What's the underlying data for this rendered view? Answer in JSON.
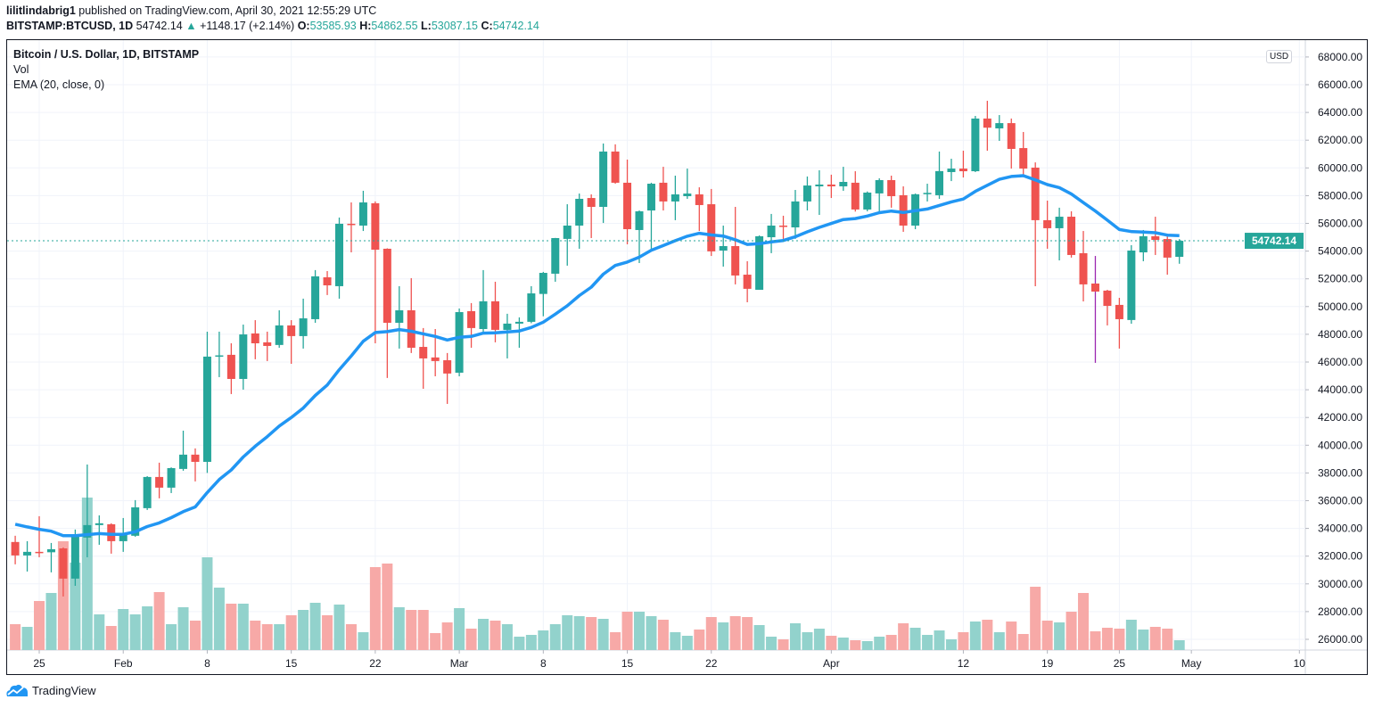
{
  "header": {
    "author": "lilitlindabrig1",
    "published": "published on TradingView.com, April 30, 2021 12:55:29 UTC",
    "symbol": "BITSTAMP:BTCUSD, 1D",
    "last": "54742.14",
    "change": "+1148.17 (+2.14%)",
    "o_label": "O:",
    "o": "53585.93",
    "h_label": "H:",
    "h": "54862.55",
    "l_label": "L:",
    "l": "53087.15",
    "c_label": "C:",
    "c": "54742.14"
  },
  "legend": {
    "title": "Bitcoin / U.S. Dollar, 1D, BITSTAMP",
    "vol": "Vol",
    "ema": "EMA (20, close, 0)"
  },
  "currency_badge": "USD",
  "footer": {
    "brand": "TradingView"
  },
  "colors": {
    "up": "#26a69a",
    "down": "#ef5350",
    "ema": "#2196f3",
    "vol_up": "#92d2cc",
    "vol_down": "#f7a9a7",
    "grid": "#f0f3fa"
  },
  "chart_data": {
    "type": "candlestick",
    "title": "Bitcoin / U.S. Dollar, 1D, BITSTAMP",
    "ylim": [
      25000,
      68500
    ],
    "y_ticks": [
      "68000.00",
      "66000.00",
      "64000.00",
      "62000.00",
      "60000.00",
      "58000.00",
      "56000.00",
      "54000.00",
      "52000.00",
      "50000.00",
      "48000.00",
      "46000.00",
      "44000.00",
      "42000.00",
      "40000.00",
      "38000.00",
      "36000.00",
      "34000.00",
      "32000.00",
      "30000.00",
      "28000.00",
      "26000.00"
    ],
    "x_ticks": [
      {
        "label": "25",
        "date": "2021-01-25"
      },
      {
        "label": "Feb",
        "date": "2021-02-01"
      },
      {
        "label": "8",
        "date": "2021-02-08"
      },
      {
        "label": "15",
        "date": "2021-02-15"
      },
      {
        "label": "22",
        "date": "2021-02-22"
      },
      {
        "label": "Mar",
        "date": "2021-03-01"
      },
      {
        "label": "8",
        "date": "2021-03-08"
      },
      {
        "label": "15",
        "date": "2021-03-15"
      },
      {
        "label": "22",
        "date": "2021-03-22"
      },
      {
        "label": "Apr",
        "date": "2021-04-01"
      },
      {
        "label": "12",
        "date": "2021-04-12"
      },
      {
        "label": "19",
        "date": "2021-04-19"
      },
      {
        "label": "25",
        "date": "2021-04-25"
      },
      {
        "label": "May",
        "date": "2021-05-01"
      },
      {
        "label": "10",
        "date": "2021-05-10"
      }
    ],
    "last_price_label": "54742.14",
    "indicator": "EMA (20, close, 0)",
    "volume_scale": "relative",
    "highlight_wick": {
      "date": "2021-04-23",
      "color": "#9c27b0"
    },
    "candles_fields": [
      "date",
      "open",
      "high",
      "low",
      "close",
      "relative_volume"
    ],
    "candles": [
      [
        "2021-01-23",
        33020,
        33470,
        31410,
        32050,
        29
      ],
      [
        "2021-01-24",
        32050,
        33080,
        30890,
        32310,
        26
      ],
      [
        "2021-01-25",
        32310,
        34880,
        31920,
        32280,
        55
      ],
      [
        "2021-01-26",
        32280,
        32950,
        30830,
        32500,
        64
      ],
      [
        "2021-01-27",
        32560,
        32630,
        29090,
        30380,
        122
      ],
      [
        "2021-01-28",
        30380,
        33920,
        29860,
        33530,
        98
      ],
      [
        "2021-01-29",
        33340,
        38610,
        31920,
        34240,
        171
      ],
      [
        "2021-01-30",
        34240,
        34940,
        32820,
        34370,
        40
      ],
      [
        "2021-01-31",
        34300,
        34370,
        32180,
        33080,
        27
      ],
      [
        "2021-02-01",
        33080,
        34750,
        32310,
        33530,
        46
      ],
      [
        "2021-02-02",
        33470,
        36040,
        33400,
        35520,
        40
      ],
      [
        "2021-02-03",
        35460,
        37770,
        35330,
        37710,
        49
      ],
      [
        "2021-02-04",
        37710,
        38740,
        36170,
        36940,
        65
      ],
      [
        "2021-02-05",
        36940,
        38400,
        36550,
        38350,
        29
      ],
      [
        "2021-02-06",
        38290,
        41050,
        38160,
        39320,
        48
      ],
      [
        "2021-02-07",
        39320,
        39770,
        37390,
        38800,
        33
      ],
      [
        "2021-02-08",
        38800,
        48190,
        38000,
        46390,
        104
      ],
      [
        "2021-02-09",
        46420,
        48190,
        44910,
        46480,
        70
      ],
      [
        "2021-02-10",
        46520,
        47350,
        43690,
        44780,
        52
      ],
      [
        "2021-02-11",
        44780,
        48700,
        44010,
        47990,
        52
      ],
      [
        "2021-02-12",
        48060,
        49020,
        46200,
        47350,
        33
      ],
      [
        "2021-02-13",
        47420,
        48190,
        46070,
        47160,
        29
      ],
      [
        "2021-02-14",
        47230,
        49730,
        47030,
        48640,
        29
      ],
      [
        "2021-02-15",
        48640,
        49020,
        45870,
        47870,
        39
      ],
      [
        "2021-02-16",
        47870,
        50570,
        46970,
        49150,
        45
      ],
      [
        "2021-02-17",
        49090,
        52630,
        48830,
        52180,
        53
      ],
      [
        "2021-02-18",
        52110,
        52560,
        50830,
        51530,
        39
      ],
      [
        "2021-02-19",
        51470,
        56420,
        50570,
        55970,
        51
      ],
      [
        "2021-02-20",
        55970,
        57510,
        53910,
        55900,
        29
      ],
      [
        "2021-02-21",
        55840,
        58350,
        55450,
        57510,
        20
      ],
      [
        "2021-02-22",
        57450,
        57580,
        47350,
        54100,
        93
      ],
      [
        "2021-02-23",
        54170,
        54200,
        44850,
        48830,
        97
      ],
      [
        "2021-02-24",
        48830,
        51470,
        46970,
        49730,
        48
      ],
      [
        "2021-02-25",
        49730,
        52050,
        46650,
        47030,
        45
      ],
      [
        "2021-02-26",
        47090,
        48450,
        44070,
        46260,
        45
      ],
      [
        "2021-02-27",
        46330,
        48380,
        44970,
        46070,
        19
      ],
      [
        "2021-02-28",
        46130,
        46650,
        42980,
        45170,
        31
      ],
      [
        "2021-03-01",
        45230,
        49860,
        44970,
        49600,
        47
      ],
      [
        "2021-03-02",
        49670,
        50250,
        47030,
        48450,
        24
      ],
      [
        "2021-03-03",
        48380,
        52630,
        48130,
        50380,
        35
      ],
      [
        "2021-03-04",
        50380,
        51790,
        47420,
        48320,
        33
      ],
      [
        "2021-03-05",
        48320,
        49480,
        46260,
        48770,
        29
      ],
      [
        "2021-03-06",
        48770,
        49220,
        47030,
        48900,
        15
      ],
      [
        "2021-03-07",
        48900,
        51470,
        48800,
        50950,
        17
      ],
      [
        "2021-03-08",
        50910,
        52500,
        49300,
        52430,
        22
      ],
      [
        "2021-03-09",
        52370,
        54950,
        51790,
        54940,
        29
      ],
      [
        "2021-03-10",
        54880,
        57380,
        52950,
        55840,
        39
      ],
      [
        "2021-03-11",
        55840,
        58150,
        54170,
        57770,
        38
      ],
      [
        "2021-03-12",
        57830,
        58090,
        54940,
        57190,
        37
      ],
      [
        "2021-03-13",
        57190,
        61760,
        56030,
        61180,
        35
      ],
      [
        "2021-03-14",
        61180,
        61700,
        58860,
        58930,
        20
      ],
      [
        "2021-03-15",
        58930,
        60600,
        54490,
        55580,
        43
      ],
      [
        "2021-03-16",
        55520,
        56930,
        53140,
        56870,
        43
      ],
      [
        "2021-03-17",
        56930,
        58930,
        54170,
        58860,
        38
      ],
      [
        "2021-03-18",
        58930,
        60080,
        56930,
        57580,
        34
      ],
      [
        "2021-03-19",
        57580,
        59440,
        56230,
        58090,
        20
      ],
      [
        "2021-03-20",
        57960,
        59950,
        57770,
        58150,
        16
      ],
      [
        "2021-03-21",
        58090,
        58600,
        55450,
        57320,
        23
      ],
      [
        "2021-03-22",
        57380,
        58480,
        53650,
        53980,
        37
      ],
      [
        "2021-03-23",
        54040,
        55840,
        52880,
        54360,
        31
      ],
      [
        "2021-03-24",
        54360,
        57190,
        51600,
        52240,
        38
      ],
      [
        "2021-03-25",
        52300,
        53270,
        50310,
        51280,
        37
      ],
      [
        "2021-03-26",
        51210,
        55130,
        51210,
        55070,
        28
      ],
      [
        "2021-03-27",
        55000,
        56680,
        53850,
        55840,
        15
      ],
      [
        "2021-03-28",
        55840,
        56550,
        54680,
        55780,
        12
      ],
      [
        "2021-03-29",
        55710,
        58410,
        54880,
        57580,
        30
      ],
      [
        "2021-03-30",
        57580,
        59380,
        56930,
        58730,
        20
      ],
      [
        "2021-03-31",
        58670,
        59830,
        56610,
        58800,
        24
      ],
      [
        "2021-04-01",
        58800,
        59510,
        57830,
        58670,
        16
      ],
      [
        "2021-04-02",
        58670,
        60080,
        58350,
        58990,
        14
      ],
      [
        "2021-04-03",
        58930,
        59760,
        56850,
        57000,
        11
      ],
      [
        "2021-04-04",
        57000,
        58300,
        56870,
        58220,
        10
      ],
      [
        "2021-04-05",
        58160,
        59250,
        56870,
        59120,
        15
      ],
      [
        "2021-04-06",
        59120,
        59440,
        57130,
        57960,
        17
      ],
      [
        "2021-04-07",
        58030,
        58670,
        55390,
        55840,
        30
      ],
      [
        "2021-04-08",
        55840,
        58150,
        55580,
        58100,
        25
      ],
      [
        "2021-04-09",
        58100,
        58860,
        57580,
        58200,
        17
      ],
      [
        "2021-04-10",
        58030,
        61180,
        57770,
        59770,
        22
      ],
      [
        "2021-04-11",
        59700,
        60660,
        59050,
        59950,
        12
      ],
      [
        "2021-04-12",
        59950,
        61240,
        59310,
        59760,
        20
      ],
      [
        "2021-04-13",
        59760,
        63750,
        59700,
        63560,
        32
      ],
      [
        "2021-04-14",
        63560,
        64840,
        61240,
        62900,
        34
      ],
      [
        "2021-04-15",
        62850,
        63810,
        61950,
        63230,
        20
      ],
      [
        "2021-04-16",
        63230,
        63560,
        59950,
        61370,
        32
      ],
      [
        "2021-04-17",
        61430,
        62590,
        59510,
        59950,
        18
      ],
      [
        "2021-04-18",
        60020,
        60400,
        51470,
        56230,
        71
      ],
      [
        "2021-04-19",
        56230,
        57640,
        54170,
        55650,
        33
      ],
      [
        "2021-04-20",
        55650,
        57130,
        53330,
        56480,
        31
      ],
      [
        "2021-04-21",
        56480,
        56870,
        53530,
        53720,
        43
      ],
      [
        "2021-04-22",
        53850,
        55450,
        50370,
        51600,
        64
      ],
      [
        "2021-04-23",
        51660,
        53650,
        45940,
        51080,
        21
      ],
      [
        "2021-04-24",
        51150,
        51210,
        48640,
        50050,
        25
      ],
      [
        "2021-04-25",
        50120,
        50630,
        46970,
        49090,
        24
      ],
      [
        "2021-04-26",
        49030,
        54430,
        48760,
        54040,
        34
      ],
      [
        "2021-04-27",
        53910,
        55520,
        53270,
        55070,
        23
      ],
      [
        "2021-04-28",
        55070,
        56480,
        53720,
        54810,
        26
      ],
      [
        "2021-04-29",
        54870,
        55260,
        52300,
        53530,
        24
      ],
      [
        "2021-04-30",
        53585.93,
        54862.55,
        53087.15,
        54742.14,
        11
      ]
    ]
  }
}
